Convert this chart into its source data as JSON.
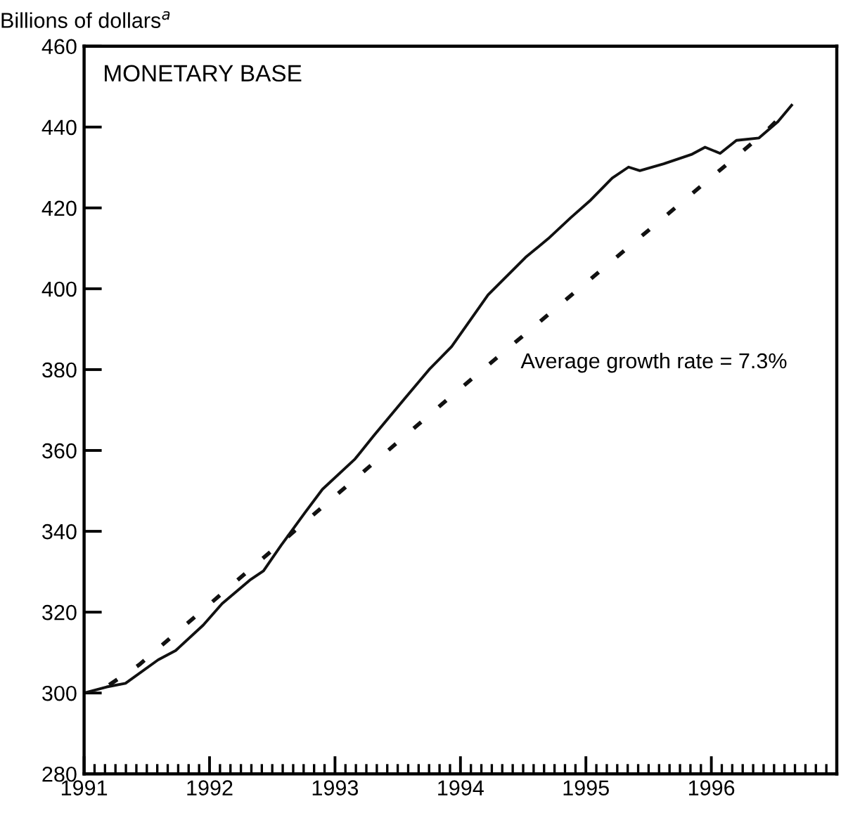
{
  "chart_data": {
    "type": "line",
    "title": "MONETARY BASE",
    "ylabel": "Billions of dollars$^{a}$",
    "annotations": [
      "Average growth rate = 7.3%"
    ],
    "xlim": [
      1991,
      1997
    ],
    "xticks": [
      {
        "value": 1991,
        "label": "1991"
      },
      {
        "value": 1992,
        "label": "1992"
      },
      {
        "value": 1993,
        "label": "1993"
      },
      {
        "value": 1994,
        "label": "1994"
      },
      {
        "value": 1995,
        "label": "1995"
      },
      {
        "value": 1996,
        "label": "1996"
      }
    ],
    "ylim": [
      280,
      460
    ],
    "yticks": [
      280,
      300,
      320,
      340,
      360,
      380,
      400,
      420,
      440,
      460
    ],
    "grid": false,
    "legend": false,
    "series": [
      {
        "color": "#111111",
        "line_style": "solid",
        "x": [
          1991.0,
          1991.18,
          1991.33,
          1991.59,
          1991.73,
          1991.95,
          1992.1,
          1992.32,
          1992.43,
          1992.57,
          1992.76,
          1992.9,
          1993.16,
          1993.31,
          1993.56,
          1993.75,
          1993.93,
          1994.22,
          1994.52,
          1994.7,
          1994.88,
          1995.03,
          1995.21,
          1995.34,
          1995.43,
          1995.62,
          1995.84,
          1995.95,
          1996.07,
          1996.2,
          1996.38,
          1996.53,
          1996.64
        ],
        "values": [
          300,
          301.5,
          302.4,
          308.2,
          310.5,
          316.8,
          322.1,
          327.9,
          330.2,
          336.5,
          344.6,
          350.4,
          357.9,
          363.7,
          373.0,
          380.0,
          385.7,
          398.5,
          407.8,
          412.4,
          417.6,
          421.7,
          427.4,
          430.1,
          429.2,
          430.9,
          433.2,
          435.0,
          433.5,
          436.7,
          437.3,
          441.3,
          445.4
        ]
      },
      {
        "color": "#111111",
        "line_style": "dashed",
        "x": [
          1991.2,
          1991.44,
          1993.91,
          1996.42,
          1996.6
        ],
        "values": [
          302,
          307,
          373,
          438.5,
          444
        ]
      }
    ]
  }
}
